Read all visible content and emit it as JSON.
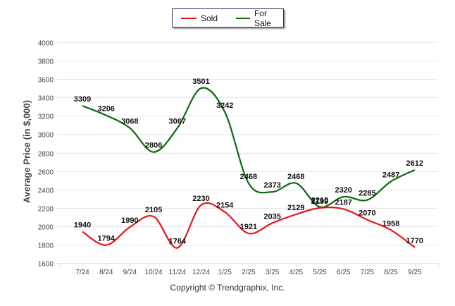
{
  "chart_data": {
    "type": "line",
    "title": "",
    "xlabel": "",
    "ylabel": "Average Price (in $,000)",
    "ylim": [
      1600,
      4000
    ],
    "yticks": [
      1600,
      1800,
      2000,
      2200,
      2400,
      2600,
      2800,
      3000,
      3200,
      3400,
      3600,
      3800,
      4000
    ],
    "grid": true,
    "legend_position": "top-center",
    "categories": [
      "7/24",
      "8/24",
      "9/24",
      "10/24",
      "11/24",
      "12/24",
      "1/25",
      "2/25",
      "3/25",
      "4/25",
      "5/25",
      "6/25",
      "7/25",
      "8/25",
      "9/25"
    ],
    "series": [
      {
        "name": "Sold",
        "color": "#e8141c",
        "values": [
          1940,
          1794,
          1990,
          2105,
          1764,
          2230,
          2154,
          1921,
          2035,
          2129,
          2199,
          2187,
          2070,
          1958,
          1770
        ]
      },
      {
        "name": "For Sale",
        "color": "#0b6b0b",
        "values": [
          3309,
          3206,
          3068,
          2806,
          3067,
          3501,
          3242,
          2468,
          2373,
          2468,
          2210,
          2320,
          2285,
          2487,
          2612
        ]
      }
    ]
  },
  "footer": {
    "copyright": "Copyright © Trendgraphix, Inc."
  }
}
